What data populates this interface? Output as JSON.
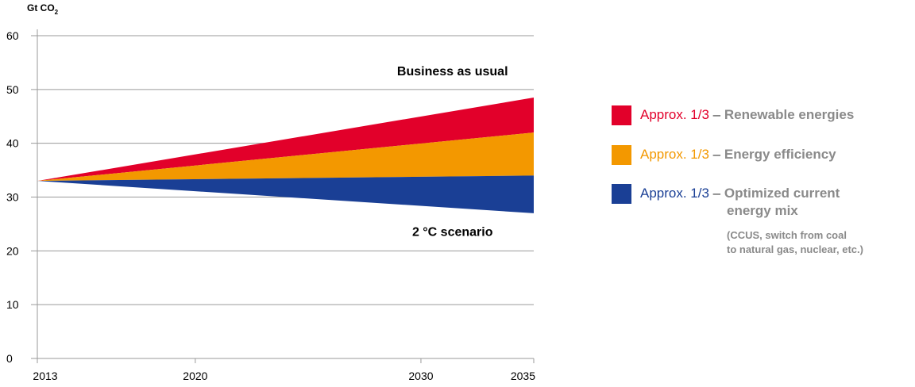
{
  "chart_data": {
    "type": "area",
    "unit_label_main": "Gt CO",
    "unit_label_sub": "2",
    "x_ticks": [
      2013,
      2020,
      2030,
      2035
    ],
    "xlim": [
      2013,
      2035
    ],
    "ylim": [
      0,
      60
    ],
    "y_ticks": [
      0,
      10,
      20,
      30,
      40,
      50,
      60
    ],
    "grid": true,
    "origin": {
      "x": 2013,
      "y": 33
    },
    "end_values_2035": {
      "business_as_usual": 48.5,
      "after_renewables": 42,
      "after_efficiency": 34,
      "two_degree_scenario": 27
    },
    "series": [
      {
        "name": "Renewable energies",
        "color": "#e2002a",
        "x": [
          2013,
          2035
        ],
        "upper": [
          33,
          48.5
        ],
        "lower": [
          33,
          42
        ]
      },
      {
        "name": "Energy efficiency",
        "color": "#f39800",
        "x": [
          2013,
          2035
        ],
        "upper": [
          33,
          42
        ],
        "lower": [
          33,
          34
        ]
      },
      {
        "name": "Optimized current energy mix",
        "color": "#1a3f95",
        "x": [
          2013,
          2035
        ],
        "upper": [
          33,
          34
        ],
        "lower": [
          33,
          27
        ]
      }
    ],
    "annotations": [
      {
        "text": "Business as usual",
        "x": 2031.4,
        "y": 52.6
      },
      {
        "text": "2 °C scenario",
        "x": 2031.4,
        "y": 22.8
      }
    ]
  },
  "legend": {
    "items": [
      {
        "approx": "Approx. 1/3",
        "dash": " – ",
        "label": "Renewable energies",
        "color": "#e2002a"
      },
      {
        "approx": "Approx. 1/3",
        "dash": " – ",
        "label": "Energy efficiency",
        "color": "#f39800"
      },
      {
        "approx": "Approx. 1/3",
        "dash": " – ",
        "label": "Optimized current",
        "label2": "energy mix",
        "color": "#1a3f95",
        "note1": "(CCUS, switch from coal",
        "note2": "to natural gas, nuclear, etc.)"
      }
    ]
  }
}
